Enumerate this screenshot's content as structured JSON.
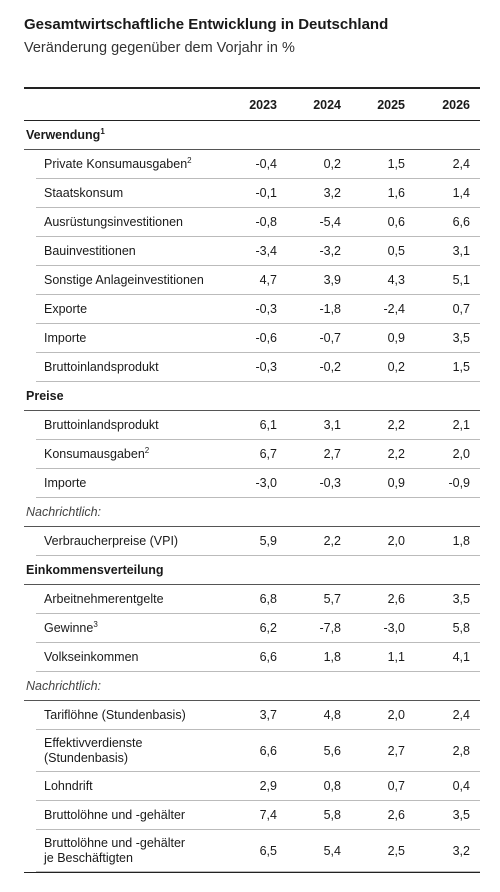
{
  "header": {
    "title": "Gesamtwirtschaftliche Entwicklung in Deutschland",
    "subtitle": "Veränderung gegenüber dem Vorjahr in %"
  },
  "table": {
    "columns": [
      "2023",
      "2024",
      "2025",
      "2026"
    ],
    "sections": [
      {
        "heading": "Verwendung",
        "heading_sup": "1",
        "italic": false,
        "rows": [
          {
            "label": [
              "Private Konsumausgaben"
            ],
            "sup": "2",
            "values": [
              "-0,4",
              "0,2",
              "1,5",
              "2,4"
            ]
          },
          {
            "label": [
              "Staatskonsum"
            ],
            "values": [
              "-0,1",
              "3,2",
              "1,6",
              "1,4"
            ]
          },
          {
            "label": [
              "Ausrüstungsinvestitionen"
            ],
            "values": [
              "-0,8",
              "-5,4",
              "0,6",
              "6,6"
            ]
          },
          {
            "label": [
              "Bauinvestitionen"
            ],
            "values": [
              "-3,4",
              "-3,2",
              "0,5",
              "3,1"
            ]
          },
          {
            "label": [
              "Sonstige Anlageinvestitionen"
            ],
            "values": [
              "4,7",
              "3,9",
              "4,3",
              "5,1"
            ]
          },
          {
            "label": [
              "Exporte"
            ],
            "values": [
              "-0,3",
              "-1,8",
              "-2,4",
              "0,7"
            ]
          },
          {
            "label": [
              "Importe"
            ],
            "values": [
              "-0,6",
              "-0,7",
              "0,9",
              "3,5"
            ]
          },
          {
            "label": [
              "Bruttoinlandsprodukt"
            ],
            "values": [
              "-0,3",
              "-0,2",
              "0,2",
              "1,5"
            ]
          }
        ]
      },
      {
        "heading": "Preise",
        "italic": false,
        "rows": [
          {
            "label": [
              "Bruttoinlandsprodukt"
            ],
            "values": [
              "6,1",
              "3,1",
              "2,2",
              "2,1"
            ]
          },
          {
            "label": [
              "Konsumausgaben"
            ],
            "sup": "2",
            "values": [
              "6,7",
              "2,7",
              "2,2",
              "2,0"
            ]
          },
          {
            "label": [
              "Importe"
            ],
            "values": [
              "-3,0",
              "-0,3",
              "0,9",
              "-0,9"
            ]
          }
        ]
      },
      {
        "heading": "Nachrichtlich:",
        "italic": true,
        "rows": [
          {
            "label": [
              "Verbraucherpreise (VPI)"
            ],
            "values": [
              "5,9",
              "2,2",
              "2,0",
              "1,8"
            ]
          }
        ]
      },
      {
        "heading": "Einkommensverteilung",
        "italic": false,
        "rows": [
          {
            "label": [
              "Arbeitnehmerentgelte"
            ],
            "values": [
              "6,8",
              "5,7",
              "2,6",
              "3,5"
            ]
          },
          {
            "label": [
              "Gewinne"
            ],
            "sup": "3",
            "values": [
              "6,2",
              "-7,8",
              "-3,0",
              "5,8"
            ]
          },
          {
            "label": [
              "Volkseinkommen"
            ],
            "values": [
              "6,6",
              "1,8",
              "1,1",
              "4,1"
            ]
          }
        ]
      },
      {
        "heading": "Nachrichtlich:",
        "italic": true,
        "rows": [
          {
            "label": [
              "Tariflöhne (Stundenbasis)"
            ],
            "values": [
              "3,7",
              "4,8",
              "2,0",
              "2,4"
            ]
          },
          {
            "label": [
              "Effektivverdienste",
              "(Stundenbasis)"
            ],
            "values": [
              "6,6",
              "5,6",
              "2,7",
              "2,8"
            ]
          },
          {
            "label": [
              "Lohndrift"
            ],
            "values": [
              "2,9",
              "0,8",
              "0,7",
              "0,4"
            ]
          },
          {
            "label": [
              "Bruttolöhne und -gehälter"
            ],
            "values": [
              "7,4",
              "5,8",
              "2,6",
              "3,5"
            ]
          },
          {
            "label": [
              "Bruttolöhne und -gehälter",
              "je Beschäftigten"
            ],
            "values": [
              "6,5",
              "5,4",
              "2,5",
              "3,2"
            ]
          }
        ]
      }
    ]
  }
}
